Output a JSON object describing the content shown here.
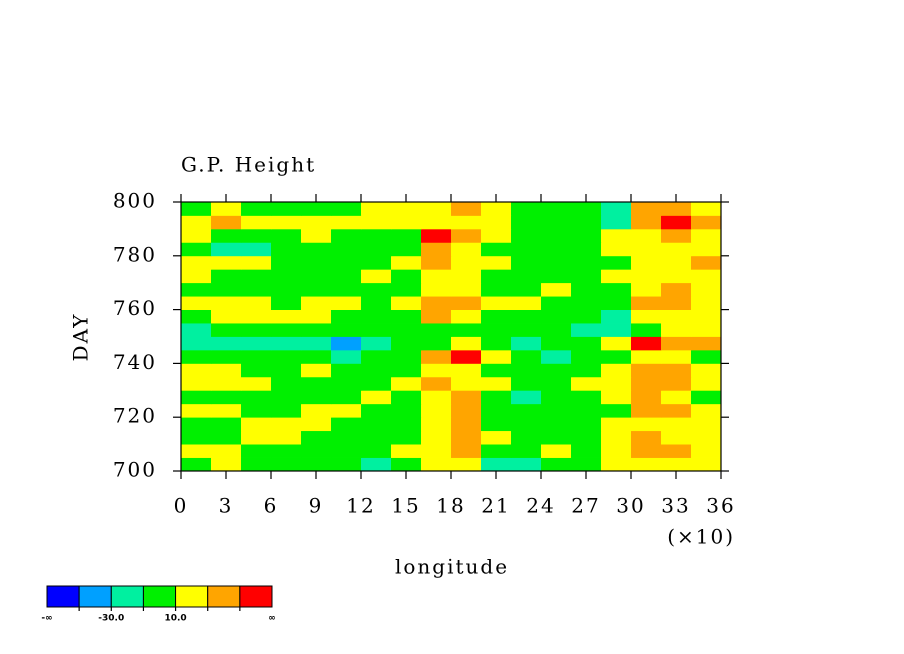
{
  "chart_data": {
    "type": "heatmap",
    "title": "G.P. Height",
    "x_label": "longitude",
    "x_multiplier": "(×10)",
    "y_label": "DAY",
    "xlim": [
      0,
      36
    ],
    "ylim": [
      700,
      800
    ],
    "xticks": [
      0,
      3,
      6,
      9,
      12,
      15,
      18,
      21,
      24,
      27,
      30,
      33,
      36
    ],
    "yticks": [
      700,
      720,
      740,
      760,
      780,
      800
    ],
    "xbins": [
      0,
      2,
      4,
      6,
      8,
      10,
      12,
      14,
      16,
      18,
      20,
      22,
      24,
      26,
      28,
      30,
      32,
      34,
      36
    ],
    "ybins": [
      700,
      705,
      710,
      715,
      720,
      725,
      730,
      735,
      740,
      745,
      750,
      755,
      760,
      765,
      770,
      775,
      780,
      785,
      790,
      795,
      800
    ],
    "z": [
      [
        5,
        15,
        0,
        -5,
        5,
        0,
        -15,
        -5,
        10,
        25,
        -15,
        -20,
        0,
        5,
        10,
        15,
        25,
        20
      ],
      [
        20,
        10,
        5,
        0,
        -5,
        5,
        0,
        10,
        15,
        35,
        5,
        -5,
        10,
        0,
        15,
        30,
        40,
        25
      ],
      [
        0,
        -5,
        15,
        10,
        0,
        -5,
        5,
        0,
        20,
        45,
        10,
        0,
        5,
        -5,
        20,
        35,
        25,
        10
      ],
      [
        -5,
        5,
        20,
        25,
        10,
        0,
        -5,
        5,
        15,
        30,
        0,
        -10,
        0,
        5,
        10,
        25,
        20,
        15
      ],
      [
        10,
        20,
        5,
        0,
        15,
        10,
        0,
        -5,
        25,
        40,
        5,
        0,
        -5,
        0,
        5,
        35,
        45,
        20
      ],
      [
        5,
        0,
        -10,
        -5,
        0,
        5,
        10,
        0,
        20,
        35,
        0,
        -15,
        -10,
        0,
        15,
        30,
        20,
        5
      ],
      [
        15,
        25,
        10,
        0,
        -5,
        0,
        5,
        10,
        30,
        25,
        10,
        0,
        5,
        10,
        20,
        40,
        35,
        15
      ],
      [
        20,
        10,
        0,
        5,
        10,
        5,
        0,
        5,
        15,
        20,
        -5,
        -10,
        0,
        5,
        25,
        45,
        30,
        20
      ],
      [
        0,
        -10,
        -5,
        0,
        -5,
        -15,
        -10,
        0,
        45,
        55,
        20,
        5,
        -20,
        -10,
        5,
        20,
        10,
        0
      ],
      [
        -20,
        -30,
        -25,
        -15,
        -20,
        -35,
        -20,
        -10,
        0,
        10,
        -5,
        -15,
        -10,
        0,
        25,
        50,
        45,
        30
      ],
      [
        -15,
        -10,
        0,
        5,
        0,
        -5,
        -10,
        -5,
        5,
        0,
        -10,
        -5,
        0,
        -15,
        -20,
        -5,
        10,
        20
      ],
      [
        5,
        10,
        15,
        20,
        10,
        5,
        0,
        5,
        35,
        25,
        5,
        0,
        -5,
        -10,
        -15,
        10,
        25,
        15
      ],
      [
        20,
        25,
        10,
        5,
        15,
        10,
        5,
        15,
        40,
        30,
        20,
        10,
        5,
        0,
        5,
        30,
        35,
        20
      ],
      [
        0,
        -5,
        5,
        0,
        -5,
        0,
        -10,
        -5,
        25,
        20,
        5,
        0,
        10,
        5,
        0,
        20,
        40,
        25
      ],
      [
        10,
        5,
        0,
        -5,
        0,
        5,
        10,
        0,
        20,
        15,
        0,
        -5,
        0,
        5,
        10,
        25,
        20,
        15
      ],
      [
        15,
        20,
        10,
        5,
        0,
        -5,
        0,
        10,
        35,
        25,
        10,
        5,
        0,
        -5,
        5,
        15,
        25,
        30
      ],
      [
        -5,
        -15,
        -20,
        -10,
        -5,
        0,
        -5,
        -10,
        40,
        20,
        0,
        -10,
        -5,
        0,
        10,
        20,
        15,
        10
      ],
      [
        10,
        5,
        0,
        5,
        10,
        5,
        0,
        -5,
        50,
        30,
        15,
        5,
        0,
        5,
        10,
        25,
        35,
        20
      ],
      [
        20,
        30,
        25,
        15,
        10,
        20,
        15,
        10,
        25,
        20,
        10,
        5,
        0,
        -10,
        -20,
        30,
        50,
        40
      ],
      [
        5,
        10,
        0,
        -5,
        0,
        5,
        10,
        15,
        20,
        35,
        15,
        5,
        0,
        -5,
        -30,
        45,
        30,
        25
      ]
    ],
    "colorbar": {
      "levels": [
        -50,
        -30,
        -10,
        10,
        30,
        50
      ],
      "colors": [
        "#0000ff",
        "#00a0ff",
        "#00f0a0",
        "#00f000",
        "#ffff00",
        "#ffa500",
        "#ff0000"
      ],
      "low_label": "-∞",
      "high_label": "∞",
      "ticks": [
        {
          "value": -30,
          "label": "-30.0"
        },
        {
          "value": 10,
          "label": "10.0"
        }
      ]
    }
  }
}
